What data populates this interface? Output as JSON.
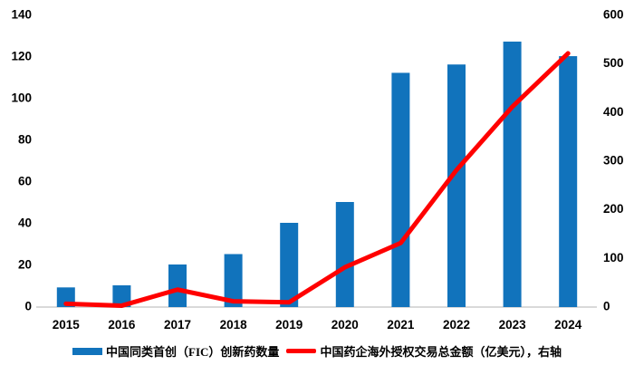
{
  "chart_data": {
    "type": "combo_bar_line",
    "title": "",
    "categories": [
      "2015",
      "2016",
      "2017",
      "2018",
      "2019",
      "2020",
      "2021",
      "2022",
      "2023",
      "2024"
    ],
    "series": [
      {
        "name": "中国同类首创（FIC）创新药数量",
        "type": "bar",
        "axis": "left",
        "color": "#1173BC",
        "values": [
          9,
          10,
          20,
          25,
          40,
          50,
          112,
          116,
          127,
          120
        ]
      },
      {
        "name": "中国药企海外授权交易总金额（亿美元），右轴",
        "type": "line",
        "axis": "right",
        "color": "#FF0000",
        "values": [
          5,
          1,
          34,
          10,
          8,
          80,
          130,
          280,
          410,
          520
        ]
      }
    ],
    "axes": {
      "left": {
        "min": 0,
        "max": 140,
        "step": 20,
        "tick_labels": [
          "0",
          "20",
          "40",
          "60",
          "80",
          "100",
          "120",
          "140"
        ]
      },
      "right": {
        "min": 0,
        "max": 600,
        "step": 100,
        "tick_labels": [
          "0",
          "100",
          "200",
          "300",
          "400",
          "500",
          "600"
        ]
      }
    },
    "grid": false,
    "legend_position": "bottom",
    "axis_line_color": "#D9D9D9",
    "text_color": "#000000",
    "background": "#FFFFFF"
  }
}
